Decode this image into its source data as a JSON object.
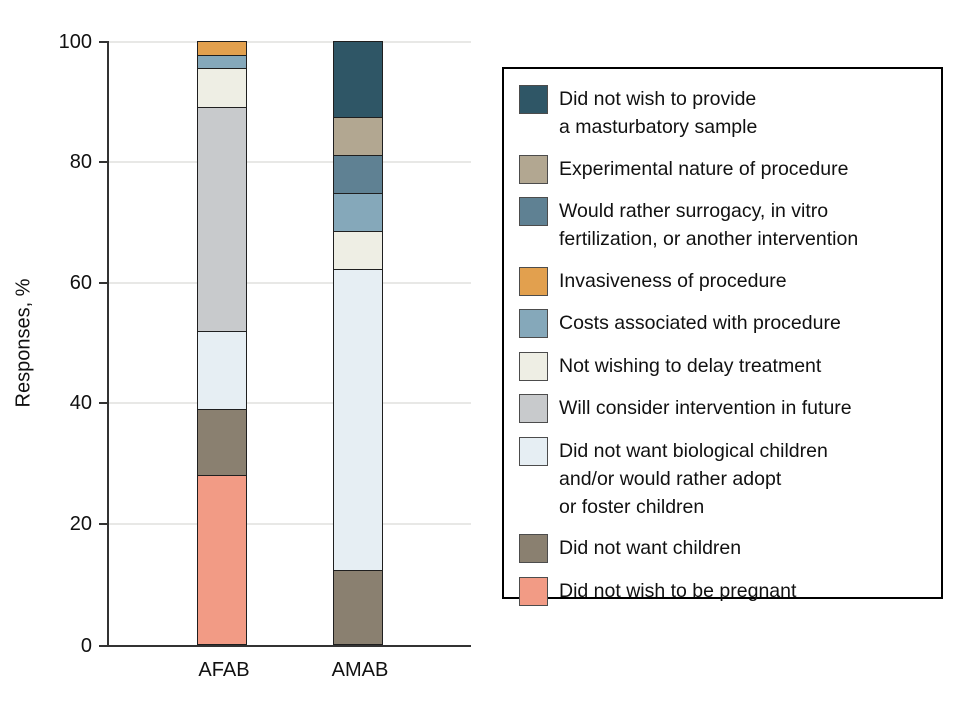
{
  "figure_title": "",
  "y_axis": {
    "title": "Responses, %",
    "tick_labels": [
      "0",
      "20",
      "40",
      "60",
      "80",
      "100"
    ]
  },
  "legend": {
    "items": [
      {
        "label": "Did not wish to provide\na masturbatory sample",
        "color": "#2F5666"
      },
      {
        "label": "Experimental nature of procedure",
        "color": "#B2A791"
      },
      {
        "label": "Would rather surrogacy, in vitro\nfertilization, or another intervention",
        "color": "#5F8193"
      },
      {
        "label": "Invasiveness of procedure",
        "color": "#E2A04E"
      },
      {
        "label": "Costs associated with procedure",
        "color": "#85A8BA"
      },
      {
        "label": "Not wishing to delay treatment",
        "color": "#EEEEE4"
      },
      {
        "label": "Will consider intervention in future",
        "color": "#C8CACC"
      },
      {
        "label": "Did not want biological children\nand/or would rather adopt\nor foster children",
        "color": "#E6EEF3"
      },
      {
        "label": "Did not want children",
        "color": "#8A8070"
      },
      {
        "label": "Did not wish to be pregnant",
        "color": "#F29B85"
      }
    ]
  },
  "chart_data": {
    "type": "bar",
    "stacked": true,
    "title": "",
    "xlabel": "",
    "ylabel": "Responses, %",
    "ylim": [
      0,
      100
    ],
    "yticks": [
      0,
      20,
      40,
      60,
      80,
      100
    ],
    "grid": true,
    "legend_position": "right",
    "categories": [
      "AFAB",
      "AMAB"
    ],
    "series": [
      {
        "name": "Did not wish to be pregnant",
        "color": "#F29B85",
        "values": [
          28.3,
          0
        ]
      },
      {
        "name": "Did not want children",
        "color": "#8A8070",
        "values": [
          10.9,
          12.5
        ]
      },
      {
        "name": "Did not want biological children and/or would rather adopt or foster children",
        "color": "#E6EEF3",
        "values": [
          13.0,
          50.0
        ]
      },
      {
        "name": "Will consider intervention in future",
        "color": "#C8CACC",
        "values": [
          37.0,
          0
        ]
      },
      {
        "name": "Not wishing to delay treatment",
        "color": "#EEEEE4",
        "values": [
          6.5,
          6.3
        ]
      },
      {
        "name": "Costs associated with procedure",
        "color": "#85A8BA",
        "values": [
          2.2,
          6.3
        ]
      },
      {
        "name": "Invasiveness of procedure",
        "color": "#E2A04E",
        "values": [
          2.2,
          0
        ]
      },
      {
        "name": "Would rather surrogacy, in vitro fertilization, or another intervention",
        "color": "#5F8193",
        "values": [
          0,
          6.3
        ]
      },
      {
        "name": "Experimental nature of procedure",
        "color": "#B2A791",
        "values": [
          0,
          6.3
        ]
      },
      {
        "name": "Did not wish to provide a masturbatory sample",
        "color": "#2F5666",
        "values": [
          0,
          12.5
        ]
      }
    ]
  }
}
